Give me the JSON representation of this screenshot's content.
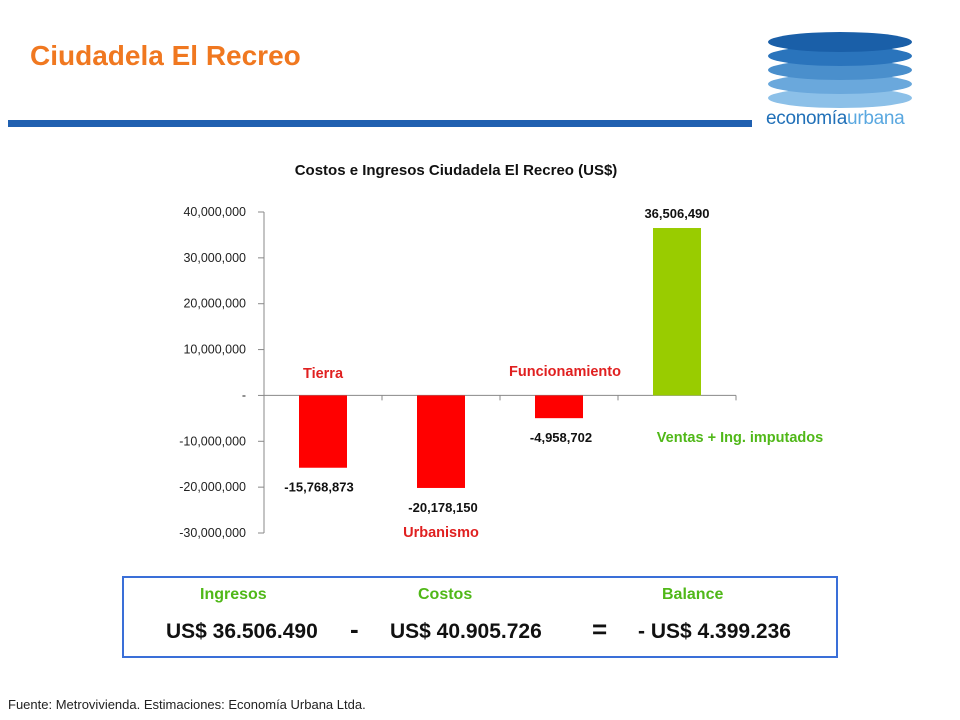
{
  "page": {
    "title": "Ciudadela El Recreo",
    "source": "Fuente: Metrovivienda.  Estimaciones: Economía Urbana Ltda."
  },
  "logo": {
    "text_dark": "economía",
    "text_light": "urbana",
    "colors": [
      "#1a5fa8",
      "#2a74bc",
      "#4a8fcc",
      "#6aa8dc",
      "#8cc0e8"
    ]
  },
  "chart_data": {
    "type": "bar",
    "title": "Costos e Ingresos Ciudadela El Recreo (US$)",
    "categories": [
      "Tierra",
      "Urbanismo",
      "Funcionamiento",
      "Ventas + Ing. imputados"
    ],
    "values": [
      -15768873,
      -20178150,
      -4958702,
      36506490
    ],
    "value_labels": [
      "-15,768,873",
      "-20,178,150",
      "-4,958,702",
      "36,506,490"
    ],
    "colors": [
      "#ff0000",
      "#ff0000",
      "#ff0000",
      "#99cc00"
    ],
    "category_label_colors": [
      "#e02020",
      "#e02020",
      "#e02020",
      "#50b818"
    ],
    "ylim": [
      -30000000,
      40000000
    ],
    "yticks": [
      40000000,
      30000000,
      20000000,
      10000000,
      0,
      -10000000,
      -20000000,
      -30000000
    ],
    "ytick_labels": [
      "40,000,000",
      "30,000,000",
      "20,000,000",
      "10,000,000",
      "-",
      "-10,000,000",
      "-20,000,000",
      "-30,000,000"
    ],
    "xlabel": "",
    "ylabel": "",
    "grid": false,
    "legend": "none"
  },
  "summary": {
    "ingresos_label": "Ingresos",
    "costos_label": "Costos",
    "balance_label": "Balance",
    "ingresos_value": "US$ 36.506.490",
    "minus": "-",
    "costos_value": "US$ 40.905.726",
    "equals": "=",
    "balance_value": "- US$ 4.399.236"
  }
}
